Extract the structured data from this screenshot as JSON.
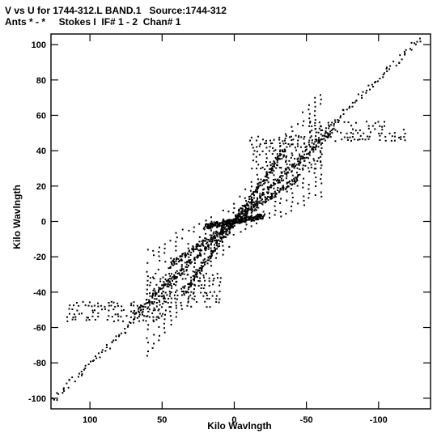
{
  "header": {
    "line1": "V vs U for 1744-312.L BAND.1   Source:1744-312",
    "line2": "Ants * - *     Stokes I  IF# 1 - 2  Chan# 1"
  },
  "chart_data": {
    "type": "scatter",
    "title": "V vs U for 1744-312.L BAND.1   Source:1744-312",
    "subtitle": "Ants * - *     Stokes I  IF# 1 - 2  Chan# 1",
    "xlabel": "Kilo Wavlngth",
    "ylabel": "Kilo Wavlngth",
    "xlim": [
      127,
      -136
    ],
    "ylim": [
      -106,
      106
    ],
    "xticks": [
      100,
      50,
      0,
      -50,
      -100
    ],
    "yticks": [
      100,
      80,
      60,
      40,
      20,
      0,
      -20,
      -40,
      -60,
      -80,
      -100
    ],
    "grid": false,
    "arms": [
      {
        "from": [
          0,
          0
        ],
        "to": [
          -128,
          103
        ],
        "color": "#000000"
      },
      {
        "from": [
          0,
          0
        ],
        "to": [
          -35,
          40
        ],
        "color": "#000000"
      },
      {
        "from": [
          0,
          0
        ],
        "to": [
          -45,
          25
        ],
        "color": "#000000"
      },
      {
        "from": [
          0,
          0
        ],
        "to": [
          -20,
          3
        ],
        "color": "#000000"
      },
      {
        "from": [
          0,
          0
        ],
        "to": [
          -70,
          52
        ],
        "color": "#000000"
      }
    ],
    "bands": [
      {
        "ymin": -56,
        "ymax": -46,
        "xmin": 50,
        "xmax": 118
      },
      {
        "ymin": -48,
        "ymax": -30,
        "xmin": 10,
        "xmax": 60
      },
      {
        "ymin": 46,
        "ymax": 56,
        "xmin": -118,
        "xmax": -50
      },
      {
        "ymin": 30,
        "ymax": 48,
        "xmin": -60,
        "xmax": -10
      }
    ]
  }
}
